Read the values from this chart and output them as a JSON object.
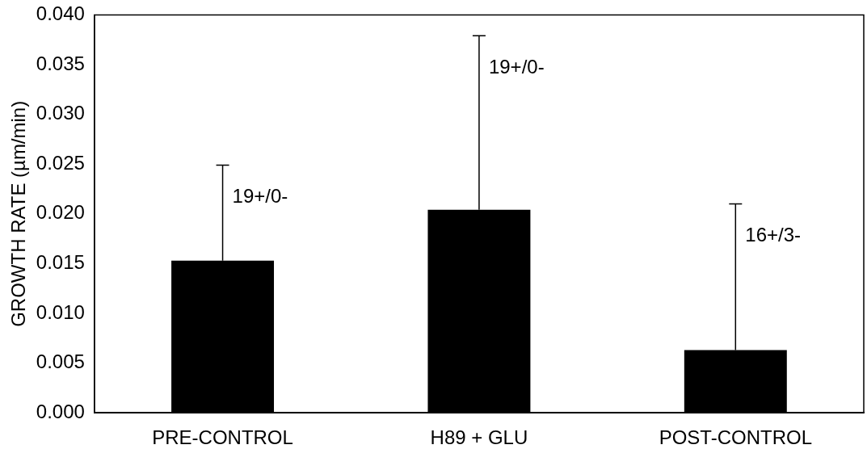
{
  "chart_data": {
    "type": "bar",
    "ylabel": "GROWTH RATE (µm/min)",
    "categories": [
      "PRE-CONTROL",
      "H89 + GLU",
      "POST-CONTROL"
    ],
    "values": [
      0.0153,
      0.0204,
      0.0063
    ],
    "color": "#000000",
    "errors": [
      [
        0.0153,
        0.0249
      ],
      [
        0.0204,
        0.0379
      ],
      [
        0.0063,
        0.021
      ]
    ],
    "ylim": [
      0,
      0.04
    ],
    "yticks": [
      {
        "value": 0,
        "label": "0.000"
      },
      {
        "value": 0.005,
        "label": "0.005"
      },
      {
        "value": 0.01,
        "label": "0.010"
      },
      {
        "value": 0.015,
        "label": "0.015"
      },
      {
        "value": 0.02,
        "label": "0.020"
      },
      {
        "value": 0.025,
        "label": "0.025"
      },
      {
        "value": 0.03,
        "label": "0.030"
      },
      {
        "value": 0.035,
        "label": "0.035"
      },
      {
        "value": 0.04,
        "label": "0.040"
      }
    ],
    "annotations": [
      "19+/0-",
      "19+/0-",
      "16+/3-"
    ],
    "grid": false,
    "legend": false
  }
}
